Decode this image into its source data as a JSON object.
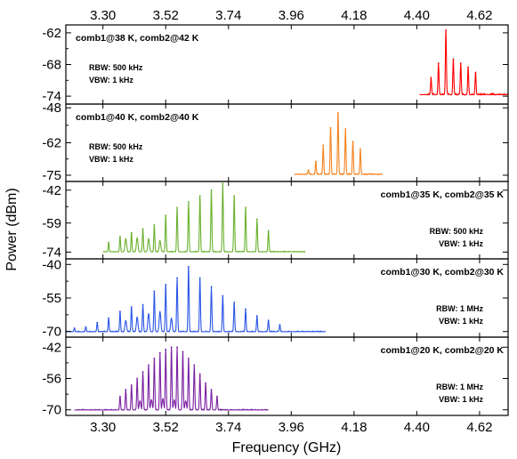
{
  "chart_data": {
    "type": "line",
    "xlabel": "Frequency (GHz)",
    "ylabel": "Power (dBm)",
    "xlim": [
      3.17,
      4.72
    ],
    "x_ticks": [
      "3.30",
      "3.52",
      "3.74",
      "3.96",
      "4.18",
      "4.40",
      "4.62"
    ],
    "grid": false,
    "panels": [
      {
        "name": "comb1@38 K, comb2@42 K",
        "rbw": "RBW: 500 kHz",
        "vbw": "VBW: 1 kHz",
        "color": "#ff0000",
        "ylim": [
          -75.5,
          -60.5
        ],
        "y_ticks": [
          -62,
          -68,
          -74
        ],
        "y_tick_labels": [
          "-62",
          "-68",
          "-74"
        ],
        "floor": -73.8,
        "noise": 0.35,
        "x_range": [
          4.41,
          4.72
        ],
        "peaks": {
          "x": [
            4.45,
            4.476,
            4.502,
            4.528,
            4.554,
            4.58,
            4.606
          ],
          "y": [
            -70.5,
            -67.8,
            -61.5,
            -67.0,
            -67.8,
            -68.5,
            -69.5
          ]
        },
        "subpeaks": {
          "x": [],
          "y": []
        }
      },
      {
        "name": "comb1@40 K, comb2@40 K",
        "rbw": "RBW: 500 kHz",
        "vbw": "VBW: 1 kHz",
        "color": "#f5821f",
        "ylim": [
          -77.5,
          -46.5
        ],
        "y_ticks": [
          -48,
          -62,
          -75
        ],
        "y_tick_labels": [
          "-48",
          "-62",
          "-75"
        ],
        "floor": -74.8,
        "noise": 0.5,
        "x_range": [
          3.97,
          4.28
        ],
        "peaks": {
          "x": [
            4.02,
            4.046,
            4.072,
            4.098,
            4.124,
            4.15,
            4.176,
            4.202
          ],
          "y": [
            -73.0,
            -69.5,
            -63.0,
            -56.0,
            -50.0,
            -56.5,
            -61.5,
            -64.5
          ]
        },
        "subpeaks": {
          "x": [],
          "y": []
        }
      },
      {
        "name": "comb1@35 K, comb2@35 K",
        "rbw": "RBW: 500 kHz",
        "vbw": "VBW: 1 kHz",
        "color": "#6ab12e",
        "ylim": [
          -77.5,
          -37.5
        ],
        "y_ticks": [
          -42,
          -59,
          -74
        ],
        "y_tick_labels": [
          "-42",
          "-59",
          "-74"
        ],
        "floor": -74.0,
        "noise": 0.5,
        "x_range": [
          3.3,
          4.01
        ],
        "peaks": {
          "x": [
            3.32,
            3.36,
            3.4,
            3.44,
            3.48,
            3.52,
            3.56,
            3.6,
            3.64,
            3.68,
            3.72,
            3.76,
            3.8,
            3.84,
            3.88
          ],
          "y": [
            -69.0,
            -66.0,
            -64.0,
            -62.0,
            -60.0,
            -55.0,
            -51.0,
            -48.0,
            -45.0,
            -42.0,
            -38.5,
            -45.0,
            -51.0,
            -57.0,
            -63.0
          ]
        },
        "subpeaks": {
          "x": [
            3.38,
            3.42,
            3.46,
            3.5
          ],
          "y": [
            -67.0,
            -66.5,
            -67.0,
            -68.0
          ]
        }
      },
      {
        "name": "comb1@30 K, comb2@30 K",
        "rbw": "RBW: 1 MHz",
        "vbw": "VBW: 1 kHz",
        "color": "#2a55e6",
        "ylim": [
          -72.5,
          -37.5
        ],
        "y_ticks": [
          -40,
          -55,
          -70
        ],
        "y_tick_labels": [
          "-40",
          "-55",
          "-70"
        ],
        "floor": -70.2,
        "noise": 0.45,
        "x_range": [
          3.17,
          4.08
        ],
        "peaks": {
          "x": [
            3.2,
            3.24,
            3.28,
            3.32,
            3.36,
            3.4,
            3.44,
            3.48,
            3.52,
            3.56,
            3.6,
            3.64,
            3.68,
            3.72,
            3.76,
            3.8,
            3.84,
            3.88,
            3.92
          ],
          "y": [
            -68.5,
            -68.0,
            -66.0,
            -64.0,
            -61.0,
            -59.0,
            -58.0,
            -52.0,
            -49.0,
            -46.0,
            -41.0,
            -46.0,
            -50.0,
            -54.0,
            -57.0,
            -60.0,
            -63.0,
            -65.0,
            -67.0
          ]
        },
        "subpeaks": {
          "x": [
            3.38,
            3.42,
            3.46,
            3.5,
            3.54
          ],
          "y": [
            -65.0,
            -63.5,
            -62.0,
            -61.0,
            -64.0
          ]
        }
      },
      {
        "name": "comb1@20 K, comb2@20 K",
        "rbw": "RBW: 1 MHz",
        "vbw": "VBW: 1 kHz",
        "color": "#7b1fa2",
        "ylim": [
          -72.5,
          -37.5
        ],
        "y_ticks": [
          -42,
          -56,
          -70
        ],
        "y_tick_labels": [
          "-42",
          "-56",
          "-70"
        ],
        "floor": -70.2,
        "noise": 0.45,
        "x_range": [
          3.2,
          3.88
        ],
        "peaks": {
          "x": [
            3.36,
            3.38,
            3.4,
            3.42,
            3.44,
            3.46,
            3.48,
            3.5,
            3.52,
            3.54,
            3.56,
            3.58,
            3.6,
            3.62,
            3.64,
            3.66,
            3.68,
            3.7
          ],
          "y": [
            -64.0,
            -61.0,
            -59.0,
            -56.0,
            -53.0,
            -50.0,
            -47.0,
            -44.5,
            -43.0,
            -42.0,
            -42.0,
            -44.0,
            -47.0,
            -50.0,
            -54.0,
            -58.0,
            -61.0,
            -64.0
          ]
        },
        "subpeaks": {
          "x": [
            3.43,
            3.47,
            3.51,
            3.55,
            3.59
          ],
          "y": [
            -66.0,
            -65.5,
            -65.0,
            -65.5,
            -66.0
          ]
        }
      }
    ]
  }
}
